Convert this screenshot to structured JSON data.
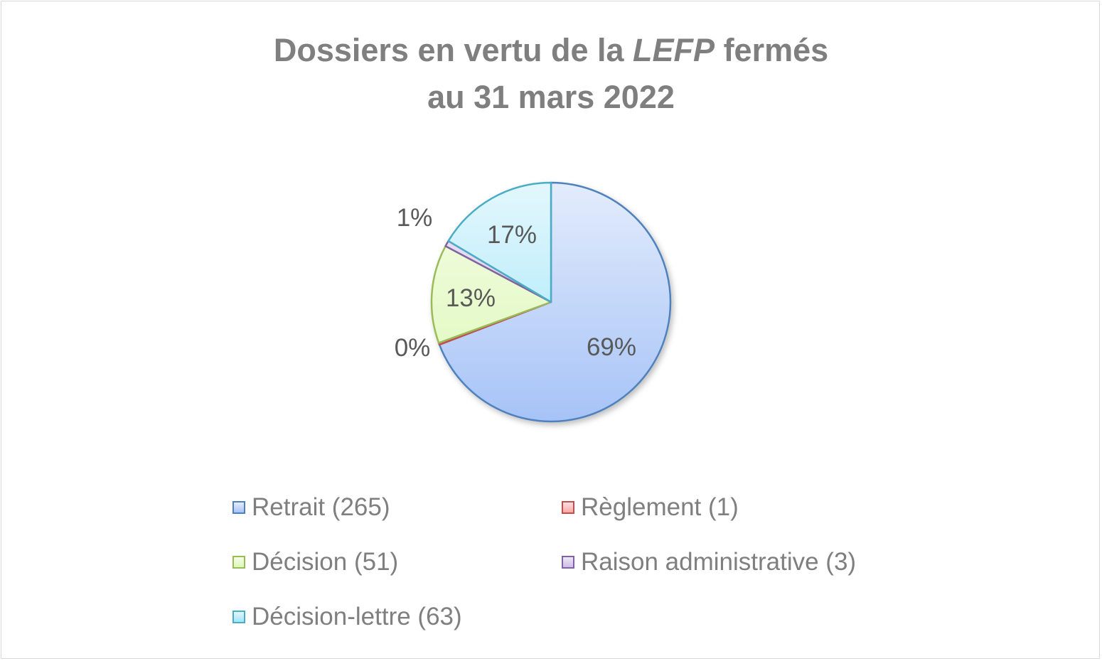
{
  "chart_data": {
    "type": "pie",
    "title_parts": [
      "Dossiers en vertu de la ",
      "LEFP",
      " fermés"
    ],
    "title_line2": "au 31 mars 2022",
    "legend_position": "bottom",
    "slices": [
      {
        "label": "Retrait (265)",
        "value": 265,
        "pct_label": "69%",
        "stroke": "#4f81bd",
        "fill_top": "#e3ecfc",
        "fill_bottom": "#a6c3f7"
      },
      {
        "label": "Règlement (1)",
        "value": 1,
        "pct_label": "0%",
        "stroke": "#c0504d",
        "fill_top": "#ffe0e0",
        "fill_bottom": "#f9a8a6"
      },
      {
        "label": "Décision (51)",
        "value": 51,
        "pct_label": "13%",
        "stroke": "#9bbb59",
        "fill_top": "#f4fde4",
        "fill_bottom": "#dcf8b8"
      },
      {
        "label": "Raison administrative (3)",
        "value": 3,
        "pct_label": "1%",
        "stroke": "#8064a2",
        "fill_top": "#efe8f8",
        "fill_bottom": "#cdbde6"
      },
      {
        "label": "Décision-lettre (63)",
        "value": 63,
        "pct_label": "17%",
        "stroke": "#4bacc6",
        "fill_top": "#e3f7fd",
        "fill_bottom": "#9fe6f8"
      }
    ]
  }
}
